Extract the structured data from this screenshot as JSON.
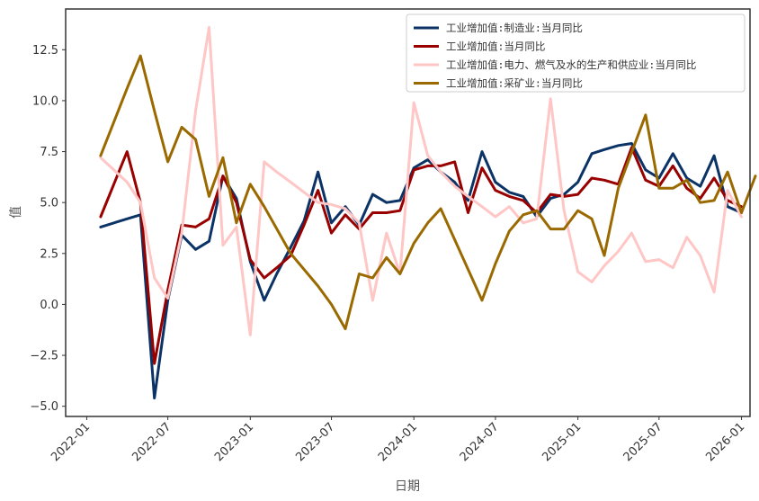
{
  "chart_data": {
    "type": "line",
    "xlabel": "日期",
    "ylabel": "值",
    "xlim": [
      "2021-11-15",
      "2026-01-20"
    ],
    "ylim": [
      -5.5,
      14.5
    ],
    "x_ticks": [
      "2022-01",
      "2022-07",
      "2023-01",
      "2023-07",
      "2024-01",
      "2024-07",
      "2025-01",
      "2025-07",
      "2026-01"
    ],
    "y_ticks": [
      -5.0,
      -2.5,
      0.0,
      2.5,
      5.0,
      7.5,
      10.0,
      12.5
    ],
    "y_tick_labels": [
      "−5.0",
      "−2.5",
      "0.0",
      "2.5",
      "5.0",
      "7.5",
      "10.0",
      "12.5"
    ],
    "grid": false,
    "legend_position": "top-right",
    "series": [
      {
        "name": "工业增加值:制造业:当月同比",
        "color": "#0b3366",
        "points": [
          [
            "2022-02",
            3.8
          ],
          [
            "2022-04",
            4.2
          ],
          [
            "2022-05",
            4.4
          ],
          [
            "2022-06",
            -4.6
          ],
          [
            "2022-07",
            0.2
          ],
          [
            "2022-08",
            3.4
          ],
          [
            "2022-09",
            2.7
          ],
          [
            "2022-10",
            3.1
          ],
          [
            "2022-11",
            6.3
          ],
          [
            "2022-12",
            5.2
          ],
          [
            "2023-01",
            2.1
          ],
          [
            "2023-02",
            0.2
          ],
          [
            "2023-03",
            1.5
          ],
          [
            "2023-04",
            2.8
          ],
          [
            "2023-05",
            4.1
          ],
          [
            "2023-06",
            6.5
          ],
          [
            "2023-07",
            4.0
          ],
          [
            "2023-08",
            4.8
          ],
          [
            "2023-09",
            3.9
          ],
          [
            "2023-10",
            5.4
          ],
          [
            "2023-11",
            5.0
          ],
          [
            "2023-12",
            5.1
          ],
          [
            "2024-01",
            6.7
          ],
          [
            "2024-02",
            7.1
          ],
          [
            "2024-03",
            6.5
          ],
          [
            "2024-04",
            6.0
          ],
          [
            "2024-05",
            5.1
          ],
          [
            "2024-06",
            7.5
          ],
          [
            "2024-07",
            6.0
          ],
          [
            "2024-08",
            5.5
          ],
          [
            "2024-09",
            5.3
          ],
          [
            "2024-10",
            4.3
          ],
          [
            "2024-11",
            5.2
          ],
          [
            "2024-12",
            5.4
          ],
          [
            "2025-01",
            6.0
          ],
          [
            "2025-02",
            7.4
          ],
          [
            "2025-03",
            7.6
          ],
          [
            "2025-04",
            7.8
          ],
          [
            "2025-05",
            7.9
          ],
          [
            "2025-06",
            6.6
          ],
          [
            "2025-07",
            6.2
          ],
          [
            "2025-08",
            7.4
          ],
          [
            "2025-09",
            6.2
          ],
          [
            "2025-10",
            5.8
          ],
          [
            "2025-11",
            7.3
          ],
          [
            "2025-12",
            4.8
          ],
          [
            "2026-01",
            4.5
          ]
        ]
      },
      {
        "name": "工业增加值:当月同比",
        "color": "#990000",
        "points": [
          [
            "2022-02",
            4.3
          ],
          [
            "2022-04",
            7.5
          ],
          [
            "2022-05",
            5.0
          ],
          [
            "2022-06",
            -2.9
          ],
          [
            "2022-07",
            0.7
          ],
          [
            "2022-08",
            3.9
          ],
          [
            "2022-09",
            3.8
          ],
          [
            "2022-10",
            4.2
          ],
          [
            "2022-11",
            6.3
          ],
          [
            "2022-12",
            5.0
          ],
          [
            "2023-01",
            2.2
          ],
          [
            "2023-02",
            1.3
          ],
          [
            "2023-03",
            1.8
          ],
          [
            "2023-04",
            2.4
          ],
          [
            "2023-05",
            3.9
          ],
          [
            "2023-06",
            5.6
          ],
          [
            "2023-07",
            3.5
          ],
          [
            "2023-08",
            4.4
          ],
          [
            "2023-09",
            3.7
          ],
          [
            "2023-10",
            4.5
          ],
          [
            "2023-11",
            4.5
          ],
          [
            "2023-12",
            4.6
          ],
          [
            "2024-01",
            6.6
          ],
          [
            "2024-02",
            6.8
          ],
          [
            "2024-03",
            6.8
          ],
          [
            "2024-04",
            7.0
          ],
          [
            "2024-05",
            4.5
          ],
          [
            "2024-06",
            6.7
          ],
          [
            "2024-07",
            5.6
          ],
          [
            "2024-08",
            5.3
          ],
          [
            "2024-09",
            5.1
          ],
          [
            "2024-10",
            4.5
          ],
          [
            "2024-11",
            5.4
          ],
          [
            "2024-12",
            5.3
          ],
          [
            "2025-01",
            5.4
          ],
          [
            "2025-02",
            6.2
          ],
          [
            "2025-03",
            6.1
          ],
          [
            "2025-04",
            5.9
          ],
          [
            "2025-05",
            7.7
          ],
          [
            "2025-06",
            6.1
          ],
          [
            "2025-07",
            5.8
          ],
          [
            "2025-08",
            6.8
          ],
          [
            "2025-09",
            5.7
          ],
          [
            "2025-10",
            5.2
          ],
          [
            "2025-11",
            6.2
          ],
          [
            "2025-12",
            5.1
          ],
          [
            "2026-01",
            4.8
          ]
        ]
      },
      {
        "name": "工业增加值:电力、燃气及水的生产和供应业:当月同比",
        "color": "#ffc6c6",
        "points": [
          [
            "2022-02",
            7.2
          ],
          [
            "2022-04",
            6.0
          ],
          [
            "2022-05",
            5.0
          ],
          [
            "2022-06",
            1.3
          ],
          [
            "2022-07",
            0.3
          ],
          [
            "2022-08",
            3.5
          ],
          [
            "2022-09",
            9.5
          ],
          [
            "2022-10",
            13.6
          ],
          [
            "2022-11",
            2.9
          ],
          [
            "2022-12",
            3.8
          ],
          [
            "2023-01",
            -1.5
          ],
          [
            "2023-02",
            7.0
          ],
          [
            "2023-03",
            6.5
          ],
          [
            "2023-04",
            6.0
          ],
          [
            "2023-05",
            5.5
          ],
          [
            "2023-06",
            5.0
          ],
          [
            "2023-07",
            4.9
          ],
          [
            "2023-08",
            4.7
          ],
          [
            "2023-09",
            4.0
          ],
          [
            "2023-10",
            0.2
          ],
          [
            "2023-11",
            3.5
          ],
          [
            "2023-12",
            1.5
          ],
          [
            "2024-01",
            9.9
          ],
          [
            "2024-02",
            7.3
          ],
          [
            "2024-03",
            6.5
          ],
          [
            "2024-04",
            5.8
          ],
          [
            "2024-05",
            5.3
          ],
          [
            "2024-06",
            4.8
          ],
          [
            "2024-07",
            4.3
          ],
          [
            "2024-08",
            4.8
          ],
          [
            "2024-09",
            4.0
          ],
          [
            "2024-10",
            4.2
          ],
          [
            "2024-11",
            10.1
          ],
          [
            "2024-12",
            4.6
          ],
          [
            "2025-01",
            1.6
          ],
          [
            "2025-02",
            1.1
          ],
          [
            "2025-03",
            1.9
          ],
          [
            "2025-04",
            2.6
          ],
          [
            "2025-05",
            3.5
          ],
          [
            "2025-06",
            2.1
          ],
          [
            "2025-07",
            2.2
          ],
          [
            "2025-08",
            1.8
          ],
          [
            "2025-09",
            3.3
          ],
          [
            "2025-10",
            2.4
          ],
          [
            "2025-11",
            0.6
          ],
          [
            "2025-12",
            5.6
          ],
          [
            "2026-01",
            4.3
          ]
        ]
      },
      {
        "name": "工业增加值:采矿业:当月同比",
        "color": "#9a6a00",
        "points": [
          [
            "2022-02",
            7.3
          ],
          [
            "2022-04",
            10.6
          ],
          [
            "2022-05",
            12.2
          ],
          [
            "2022-06",
            9.5
          ],
          [
            "2022-07",
            7.0
          ],
          [
            "2022-08",
            8.7
          ],
          [
            "2022-09",
            8.1
          ],
          [
            "2022-10",
            5.3
          ],
          [
            "2022-11",
            7.2
          ],
          [
            "2022-12",
            4.0
          ],
          [
            "2023-01",
            5.9
          ],
          [
            "2023-02",
            4.8
          ],
          [
            "2023-04",
            2.5
          ],
          [
            "2023-06",
            0.9
          ],
          [
            "2023-07",
            0.0
          ],
          [
            "2023-08",
            -1.2
          ],
          [
            "2023-09",
            1.5
          ],
          [
            "2023-10",
            1.3
          ],
          [
            "2023-11",
            2.3
          ],
          [
            "2023-12",
            1.5
          ],
          [
            "2024-01",
            3.0
          ],
          [
            "2024-02",
            4.0
          ],
          [
            "2024-03",
            4.7
          ],
          [
            "2024-06",
            0.2
          ],
          [
            "2024-07",
            2.0
          ],
          [
            "2024-08",
            3.6
          ],
          [
            "2024-09",
            4.4
          ],
          [
            "2024-10",
            4.6
          ],
          [
            "2024-11",
            3.7
          ],
          [
            "2024-12",
            3.7
          ],
          [
            "2025-01",
            4.6
          ],
          [
            "2025-02",
            4.2
          ],
          [
            "2025-03",
            2.4
          ],
          [
            "2025-04",
            5.7
          ],
          [
            "2025-06",
            9.3
          ],
          [
            "2025-07",
            5.7
          ],
          [
            "2025-08",
            5.7
          ],
          [
            "2025-09",
            6.1
          ],
          [
            "2025-10",
            5.0
          ],
          [
            "2025-11",
            5.1
          ],
          [
            "2025-12",
            6.5
          ],
          [
            "2026-01",
            4.5
          ],
          [
            "2026-02",
            6.3
          ]
        ]
      }
    ]
  }
}
